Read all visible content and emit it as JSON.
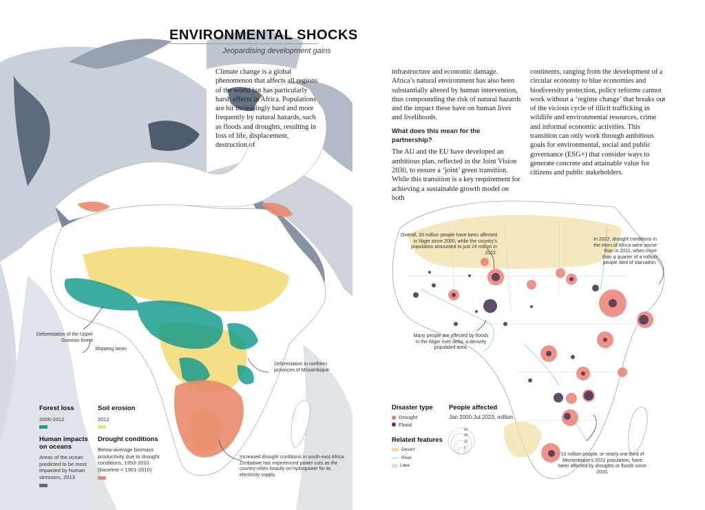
{
  "header": {
    "title": "ENVIRONMENTAL SHOCKS",
    "subtitle": "Jeopardising development gains"
  },
  "article": {
    "col1": "Climate change is a global phenomenon that affects all regions of the world but has particularly harsh effects in Africa. Populations are hit increasingly hard and more frequently by natural hazards, such as floods and droughts, resulting in loss of life, displacement, destruction of",
    "col2_p1": "infrastructure and economic damage. Africa’s natural environment has also been substantially altered by human intervention, thus compounding the risk of natural hazards and the impact these have on human lives and livelihoods.",
    "col2_subhead": "What does this mean for the partnership?",
    "col2_p2": "The AU and the EU have developed an ambitious plan, reflected in the Joint Vision 2030, to ensure a ‘joint’ green transition. While this transition is a key requirement for achieving a sustainable growth model on both",
    "col3": "continents, ranging from the development of a circular economy to blue economies and biodiversity protection, policy reforms cannot work without a ‘regime change’ that breaks out of the vicious cycle of illicit trafficking in wildlife and environmental resources, crime and informal economic activities. This transition can only work through ambitious goals for environmental, social and public governance (ESG+) that consider ways to generate concrete and attainable value for citizens and public stakeholders."
  },
  "left_map": {
    "annotations": {
      "guinean": "Deforestation of the Upper Guinean forest",
      "shipping": "Shipping lanes",
      "mozambique": "Deforestation in northern provinces of Mozambique",
      "drought_se": "Increased drought conditions in south-east Africa. Zimbabwe has experienced power cuts as the country relies heavily on hydropower for its electricity supply."
    },
    "legend": {
      "forest_title": "Forest loss",
      "forest_sub": "2000-2012",
      "soil_title": "Soil erosion",
      "soil_sub": "2012",
      "oceans_title": "Human impacts on oceans",
      "oceans_sub": "Areas of the ocean predicted to be most impacted by human stressors, 2013",
      "drought_title": "Drought conditions",
      "drought_sub": "Below-average biomass productivity due to drought conditions, 1953-2010 (baseline = 1901-2010)"
    },
    "colors": {
      "forest": "#1a9e8f",
      "soil": "#f3dc7a",
      "oceans": "#5d6a7e",
      "drought": "#e98a6e"
    }
  },
  "right_map": {
    "annotations": {
      "niger": "Overall, 33 million people have been affected in Niger since 2000, while the country’s population amounted to just 24 million in 2022.",
      "horn": "In 2022, drought conditions in the Horn of Africa were worse than in 2011, when more than a quarter of a million people died of starvation.",
      "delta": "Many people are affected by floods in the Niger river delta, a densely populated area.",
      "moz": "10 million people, or nearly one third of Mozambique’s 2022 population, have been affected by droughts or floods since 2000."
    },
    "legend": {
      "disaster_title": "Disaster type",
      "drought": "Drought",
      "flood": "Flood",
      "people_title": "People affected",
      "people_sub": "Jan 2000-Jul 2023, million",
      "size_values": [
        "60",
        "40",
        "20",
        "5"
      ],
      "related_title": "Related features",
      "desert": "Desert",
      "river": "River",
      "lake": "Lake"
    },
    "colors": {
      "drought": "#e8786b",
      "flood": "#4e3a56",
      "desert": "#f2dfa8",
      "river": "#9fd3df",
      "lake": "#c8e8ef"
    }
  }
}
